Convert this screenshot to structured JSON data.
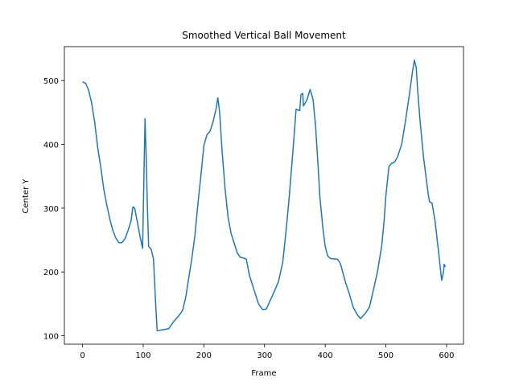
{
  "chart_data": {
    "type": "line",
    "title": "Smoothed Vertical Ball Movement",
    "xlabel": "Frame",
    "ylabel": "Center Y",
    "x": [
      0,
      5,
      10,
      15,
      20,
      25,
      30,
      35,
      40,
      45,
      50,
      55,
      60,
      65,
      70,
      75,
      80,
      83,
      86,
      90,
      95,
      99,
      103,
      105,
      107,
      109,
      113,
      117,
      120,
      123,
      130,
      142,
      150,
      160,
      165,
      170,
      175,
      180,
      185,
      190,
      195,
      200,
      205,
      210,
      215,
      220,
      223,
      226,
      230,
      235,
      240,
      245,
      250,
      255,
      260,
      265,
      270,
      275,
      280,
      285,
      290,
      297,
      303,
      314,
      323,
      330,
      335,
      340,
      346,
      350,
      352,
      358,
      360,
      363,
      364,
      370,
      375,
      377,
      380,
      384,
      388,
      391,
      396,
      400,
      404,
      409,
      420,
      424,
      426,
      433,
      440,
      446,
      453,
      458,
      466,
      473,
      479,
      486,
      493,
      497,
      500,
      505,
      509,
      514,
      519,
      526,
      532,
      539,
      544,
      547,
      550,
      552,
      556,
      562,
      566,
      570,
      572,
      576,
      581,
      587,
      591,
      592,
      595,
      596,
      598
    ],
    "series": [
      {
        "name": "Center Y",
        "color": "#1f77b4",
        "values": [
          498,
          496,
          485,
          465,
          435,
          395,
          365,
          330,
          305,
          283,
          265,
          253,
          246,
          246,
          252,
          265,
          280,
          302,
          300,
          280,
          255,
          237,
          440,
          380,
          300,
          240,
          236,
          220,
          160,
          108,
          109,
          111,
          122,
          133,
          140,
          160,
          190,
          220,
          255,
          305,
          350,
          398,
          415,
          420,
          435,
          455,
          473,
          450,
          390,
          330,
          285,
          260,
          245,
          230,
          223,
          222,
          220,
          195,
          180,
          165,
          150,
          141,
          142,
          165,
          185,
          215,
          260,
          310,
          380,
          430,
          455,
          453,
          478,
          480,
          460,
          470,
          486,
          480,
          470,
          430,
          370,
          320,
          270,
          240,
          225,
          221,
          220,
          215,
          210,
          185,
          165,
          145,
          133,
          127,
          135,
          145,
          170,
          200,
          240,
          280,
          320,
          365,
          370,
          372,
          380,
          400,
          435,
          480,
          515,
          532,
          520,
          490,
          440,
          380,
          350,
          320,
          310,
          308,
          280,
          230,
          195,
          187,
          200,
          212,
          208
        ]
      }
    ],
    "xlim": [
      -29.9,
      627.9
    ],
    "ylim": [
      86.8,
      553.2
    ],
    "xticks": [
      0,
      100,
      200,
      300,
      400,
      500,
      600
    ],
    "yticks": [
      100,
      200,
      300,
      400,
      500
    ]
  }
}
